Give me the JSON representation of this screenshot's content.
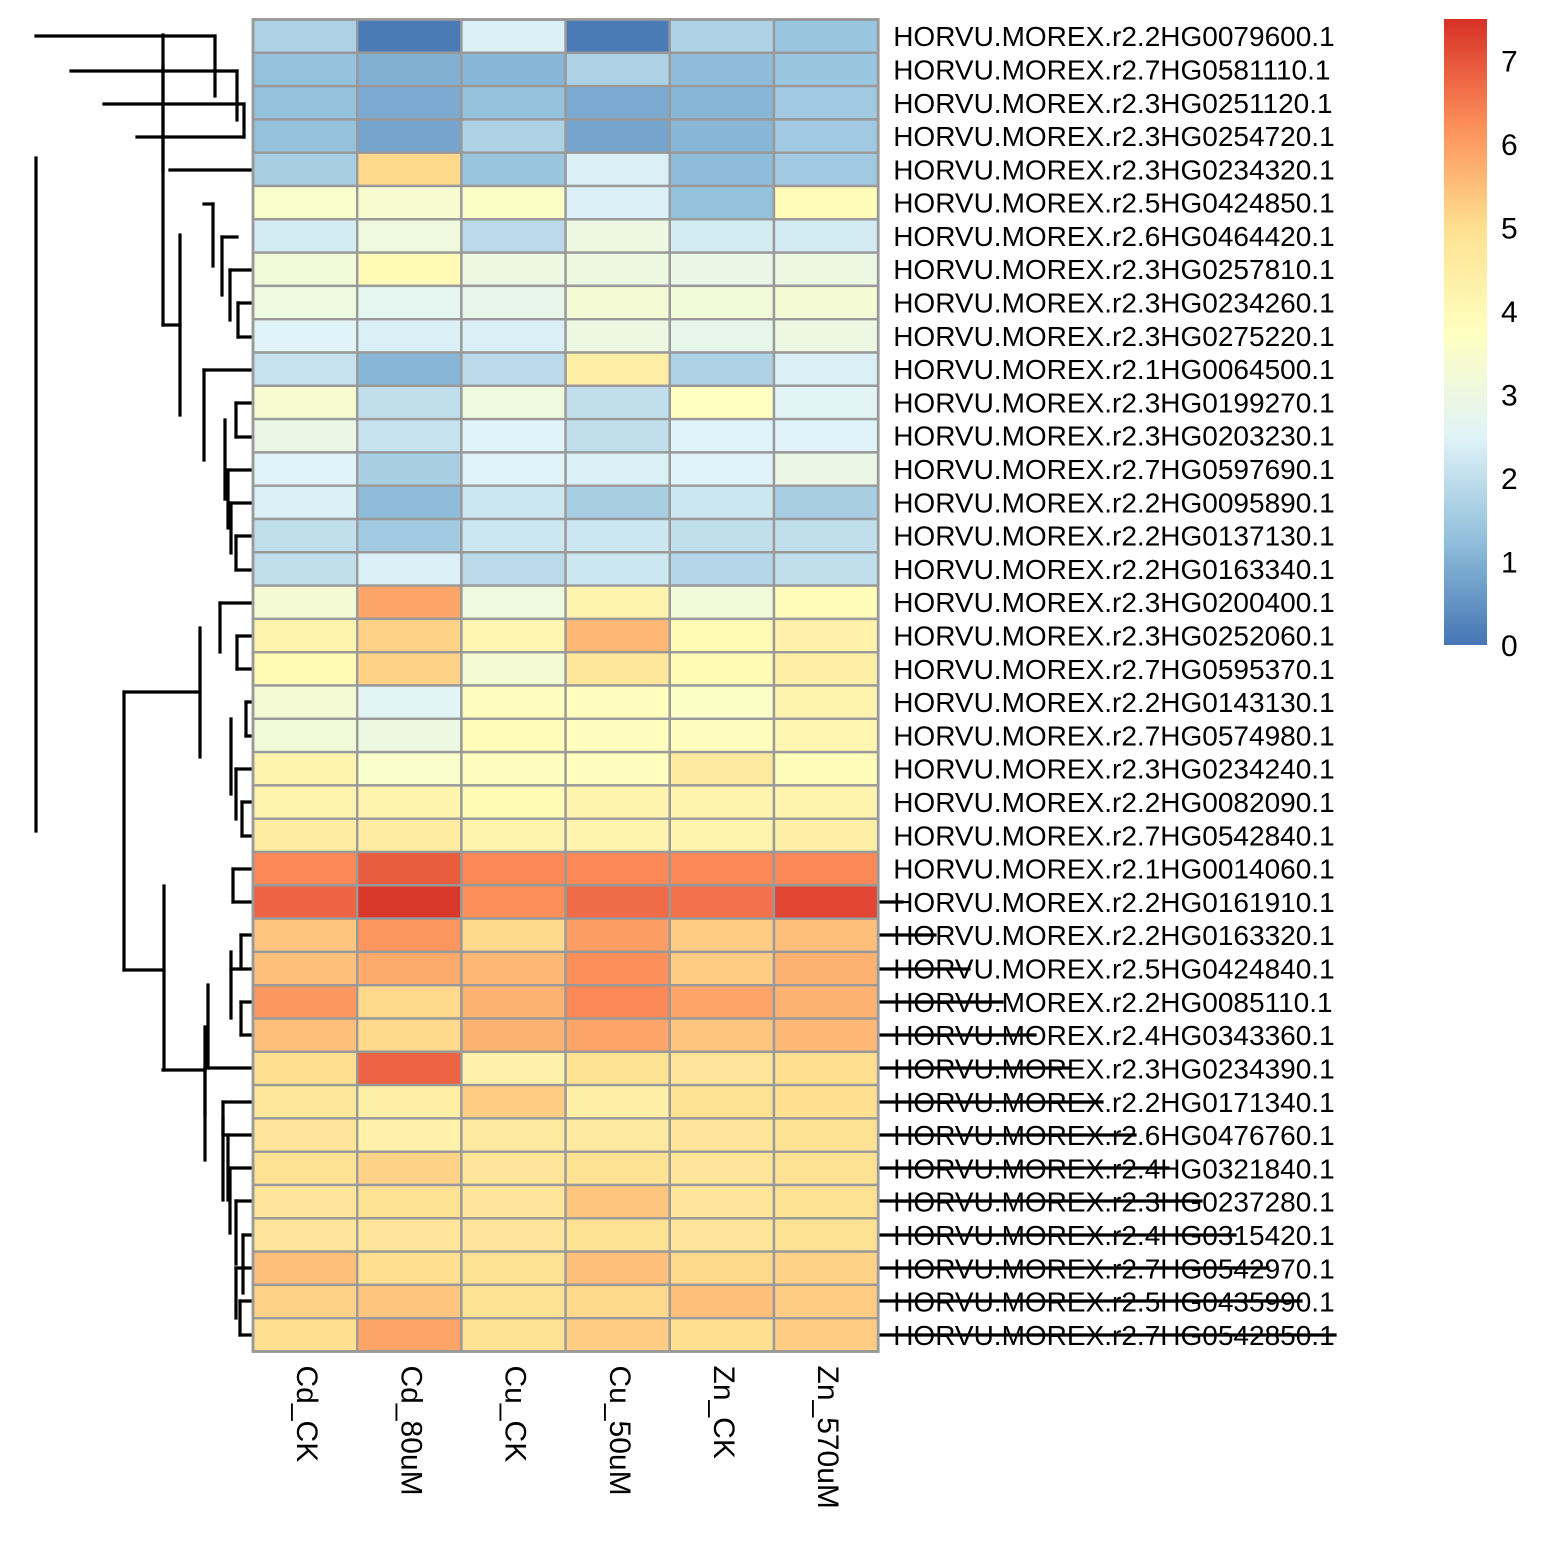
{
  "chart_data": {
    "type": "heatmap",
    "title": "",
    "xlabel": "",
    "ylabel": "",
    "columns": [
      "Cd_CK",
      "Cd_80uM",
      "Cu_CK",
      "Cu_50uM",
      "Zn_CK",
      "Zn_570uM"
    ],
    "rows": [
      "HORVU.MOREX.r2.2HG0079600.1",
      "HORVU.MOREX.r2.7HG0581110.1",
      "HORVU.MOREX.r2.3HG0251120.1",
      "HORVU.MOREX.r2.3HG0254720.1",
      "HORVU.MOREX.r2.3HG0234320.1",
      "HORVU.MOREX.r2.5HG0424850.1",
      "HORVU.MOREX.r2.6HG0464420.1",
      "HORVU.MOREX.r2.3HG0257810.1",
      "HORVU.MOREX.r2.3HG0234260.1",
      "HORVU.MOREX.r2.3HG0275220.1",
      "HORVU.MOREX.r2.1HG0064500.1",
      "HORVU.MOREX.r2.3HG0199270.1",
      "HORVU.MOREX.r2.3HG0203230.1",
      "HORVU.MOREX.r2.7HG0597690.1",
      "HORVU.MOREX.r2.2HG0095890.1",
      "HORVU.MOREX.r2.2HG0137130.1",
      "HORVU.MOREX.r2.2HG0163340.1",
      "HORVU.MOREX.r2.3HG0200400.1",
      "HORVU.MOREX.r2.3HG0252060.1",
      "HORVU.MOREX.r2.7HG0595370.1",
      "HORVU.MOREX.r2.2HG0143130.1",
      "HORVU.MOREX.r2.7HG0574980.1",
      "HORVU.MOREX.r2.3HG0234240.1",
      "HORVU.MOREX.r2.2HG0082090.1",
      "HORVU.MOREX.r2.7HG0542840.1",
      "HORVU.MOREX.r2.1HG0014060.1",
      "HORVU.MOREX.r2.2HG0161910.1",
      "HORVU.MOREX.r2.2HG0163320.1",
      "HORVU.MOREX.r2.5HG0424840.1",
      "HORVU.MOREX.r2.2HG0085110.1",
      "HORVU.MOREX.r2.4HG0343360.1",
      "HORVU.MOREX.r2.3HG0234390.1",
      "HORVU.MOREX.r2.2HG0171340.1",
      "HORVU.MOREX.r2.6HG0476760.1",
      "HORVU.MOREX.r2.4HG0321840.1",
      "HORVU.MOREX.r2.3HG0237280.1",
      "HORVU.MOREX.r2.4HG0315420.1",
      "HORVU.MOREX.r2.7HG0542970.1",
      "HORVU.MOREX.r2.5HG0435990.1",
      "HORVU.MOREX.r2.7HG0542850.1"
    ],
    "values": [
      [
        1.7,
        0.1,
        2.4,
        0.1,
        1.7,
        1.4
      ],
      [
        1.3,
        1.0,
        1.1,
        1.7,
        1.2,
        1.4
      ],
      [
        1.3,
        0.9,
        1.3,
        0.9,
        1.1,
        1.5
      ],
      [
        1.3,
        0.8,
        1.7,
        0.8,
        1.1,
        1.5
      ],
      [
        1.6,
        5.1,
        1.4,
        2.4,
        1.2,
        1.5
      ],
      [
        3.5,
        3.4,
        3.6,
        2.4,
        1.3,
        3.9
      ],
      [
        2.3,
        3.1,
        1.9,
        3.0,
        2.3,
        2.3
      ],
      [
        3.2,
        4.0,
        3.0,
        3.0,
        2.9,
        3.0
      ],
      [
        3.1,
        2.7,
        2.8,
        3.3,
        3.2,
        3.3
      ],
      [
        2.5,
        2.4,
        2.4,
        3.0,
        2.8,
        3.0
      ],
      [
        2.1,
        1.1,
        1.9,
        4.4,
        1.7,
        2.4
      ],
      [
        3.4,
        2.0,
        3.1,
        2.0,
        3.7,
        2.6
      ],
      [
        2.9,
        2.1,
        2.5,
        2.0,
        2.5,
        2.5
      ],
      [
        2.5,
        1.6,
        2.5,
        2.4,
        2.5,
        2.9
      ],
      [
        2.4,
        1.2,
        2.2,
        1.6,
        2.2,
        1.6
      ],
      [
        2.0,
        1.5,
        2.2,
        2.2,
        2.0,
        2.0
      ],
      [
        2.0,
        2.4,
        1.9,
        2.2,
        1.8,
        2.0
      ],
      [
        3.3,
        5.9,
        3.1,
        4.2,
        3.2,
        3.9
      ],
      [
        4.2,
        5.2,
        4.1,
        5.6,
        4.0,
        4.3
      ],
      [
        4.0,
        5.2,
        3.3,
        4.7,
        4.0,
        4.4
      ],
      [
        3.3,
        2.6,
        3.8,
        3.8,
        3.6,
        4.2
      ],
      [
        3.2,
        3.0,
        3.9,
        3.8,
        3.8,
        4.1
      ],
      [
        4.2,
        3.5,
        3.8,
        3.8,
        4.6,
        3.9
      ],
      [
        4.2,
        4.2,
        4.0,
        4.2,
        4.2,
        4.2
      ],
      [
        4.5,
        4.5,
        4.2,
        4.2,
        4.2,
        4.4
      ],
      [
        6.3,
        6.9,
        6.3,
        6.3,
        6.3,
        6.3
      ],
      [
        6.8,
        7.4,
        6.2,
        6.7,
        6.6,
        7.2
      ],
      [
        5.4,
        6.1,
        5.1,
        6.0,
        5.3,
        5.5
      ],
      [
        5.5,
        5.8,
        5.6,
        6.2,
        5.3,
        5.7
      ],
      [
        6.1,
        5.1,
        5.7,
        6.3,
        5.9,
        5.7
      ],
      [
        5.5,
        5.1,
        5.7,
        5.9,
        5.4,
        5.6
      ],
      [
        5.0,
        6.8,
        4.3,
        4.9,
        4.8,
        5.0
      ],
      [
        4.7,
        4.4,
        5.3,
        4.4,
        4.9,
        5.0
      ],
      [
        4.8,
        4.3,
        4.6,
        4.6,
        4.8,
        4.9
      ],
      [
        4.9,
        5.2,
        4.8,
        4.9,
        4.8,
        4.9
      ],
      [
        4.8,
        4.9,
        4.8,
        5.4,
        4.8,
        4.9
      ],
      [
        4.8,
        4.8,
        4.8,
        4.9,
        4.8,
        4.9
      ],
      [
        5.5,
        5.0,
        4.9,
        5.5,
        5.1,
        5.2
      ],
      [
        5.2,
        5.4,
        4.9,
        5.1,
        5.5,
        5.3
      ],
      [
        5.0,
        5.9,
        4.9,
        5.3,
        5.0,
        5.3
      ]
    ],
    "color_scale": {
      "min": 0,
      "max": 7.5,
      "ticks": [
        0,
        1,
        2,
        3,
        4,
        5,
        6,
        7
      ],
      "stops": [
        "#4575b4",
        "#91bfdb",
        "#e0f3f8",
        "#ffffbf",
        "#fee090",
        "#fc8d59",
        "#d73027"
      ]
    },
    "grid": true,
    "legend_position": "right",
    "row_dendrogram": true,
    "dendrogram_segments": [
      [
        1,
        36,
        215,
        36
      ],
      [
        1,
        71,
        237,
        71
      ],
      [
        1,
        104,
        244,
        104
      ],
      [
        1,
        137,
        244,
        137
      ],
      [
        1,
        170,
        252,
        170
      ],
      [
        1,
        204,
        213,
        204
      ],
      [
        1,
        237,
        222,
        237
      ],
      [
        1,
        270,
        230,
        270
      ],
      [
        1,
        303,
        238,
        303
      ],
      [
        1,
        337,
        238,
        337
      ],
      [
        1,
        370,
        204,
        370
      ],
      [
        1,
        403,
        236,
        403
      ],
      [
        1,
        437,
        236,
        437
      ],
      [
        1,
        470,
        228,
        470
      ],
      [
        1,
        503,
        231,
        503
      ],
      [
        1,
        536,
        236,
        536
      ],
      [
        1,
        570,
        236,
        570
      ],
      [
        1,
        603,
        220,
        603
      ],
      [
        1,
        636,
        237,
        636
      ],
      [
        1,
        669,
        237,
        669
      ],
      [
        1,
        702,
        246,
        702
      ],
      [
        1,
        736,
        246,
        736
      ],
      [
        1,
        769,
        236,
        769
      ],
      [
        1,
        802,
        242,
        802
      ],
      [
        1,
        836,
        242,
        836
      ],
      [
        1,
        869,
        233,
        869
      ],
      [
        1,
        902,
        233,
        902
      ],
      [
        1,
        935,
        241,
        935
      ],
      [
        1,
        969,
        231,
        969
      ],
      [
        1,
        1002,
        241,
        1002
      ],
      [
        1,
        1035,
        241,
        1035
      ],
      [
        1,
        1068,
        208,
        1068
      ],
      [
        1,
        1102,
        223,
        1102
      ],
      [
        1,
        1135,
        223,
        1135
      ],
      [
        1,
        1168,
        230,
        1168
      ],
      [
        1,
        1201,
        236,
        1201
      ],
      [
        1,
        1235,
        243,
        1235
      ],
      [
        1,
        1268,
        236,
        1268
      ],
      [
        1,
        1301,
        240,
        1301
      ],
      [
        1,
        1335,
        240,
        1335
      ],
      [
        0,
        244,
        104,
        137
      ],
      [
        0,
        237,
        71,
        120
      ],
      [
        0,
        215,
        36,
        96
      ],
      [
        0,
        163,
        66,
        170
      ],
      [
        0,
        223,
        1102,
        1135
      ],
      [
        0,
        238,
        303,
        337
      ],
      [
        0,
        230,
        270,
        320
      ],
      [
        0,
        222,
        237,
        295
      ],
      [
        0,
        213,
        204,
        266
      ],
      [
        0,
        236,
        403,
        437
      ],
      [
        0,
        236,
        536,
        570
      ],
      [
        0,
        231,
        503,
        553
      ],
      [
        0,
        228,
        470,
        528
      ],
      [
        0,
        225,
        420,
        499
      ],
      [
        0,
        204,
        370,
        460
      ],
      [
        0,
        180,
        235,
        415
      ],
      [
        0,
        163,
        35,
        325
      ],
      [
        0,
        237,
        636,
        669
      ],
      [
        0,
        220,
        603,
        652
      ],
      [
        0,
        246,
        702,
        736
      ],
      [
        0,
        242,
        802,
        836
      ],
      [
        0,
        236,
        769,
        819
      ],
      [
        0,
        231,
        719,
        794
      ],
      [
        0,
        200,
        628,
        757
      ],
      [
        0,
        233,
        869,
        902
      ],
      [
        0,
        241,
        935,
        969
      ],
      [
        0,
        241,
        1002,
        1035
      ],
      [
        0,
        231,
        952,
        1018
      ],
      [
        0,
        208,
        985,
        1068
      ],
      [
        0,
        240,
        1301,
        1335
      ],
      [
        0,
        236,
        1268,
        1318
      ],
      [
        0,
        243,
        1235,
        1293
      ],
      [
        0,
        236,
        1201,
        1264
      ],
      [
        0,
        230,
        1168,
        1233
      ],
      [
        0,
        228,
        1135,
        1200
      ],
      [
        0,
        223,
        1118,
        1200
      ],
      [
        0,
        205,
        1068,
        1160
      ],
      [
        0,
        205,
        1027,
        1114
      ],
      [
        0,
        164,
        886,
        1070
      ],
      [
        0,
        124,
        692,
        970
      ],
      [
        0,
        36,
        158,
        831
      ],
      [
        2,
        163,
        325,
        180,
        325
      ],
      [
        2,
        163,
        1070,
        205,
        1070
      ],
      [
        2,
        124,
        692,
        200,
        692
      ],
      [
        2,
        124,
        970,
        164,
        970
      ]
    ]
  }
}
